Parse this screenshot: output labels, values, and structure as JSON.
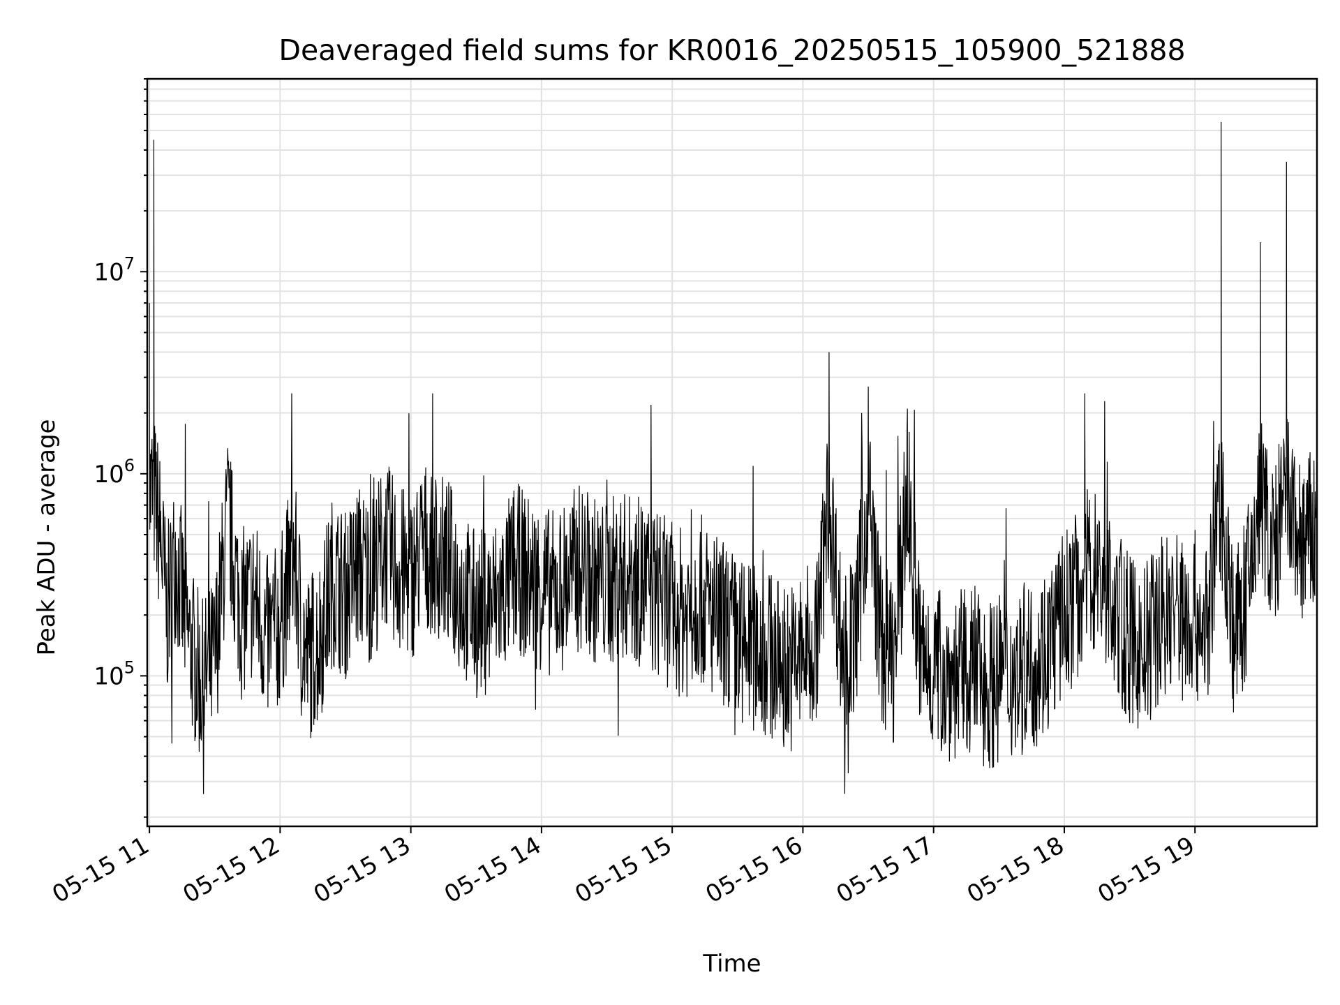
{
  "chart_data": {
    "type": "line",
    "title": "Deaveraged field sums for KR0016_20250515_105900_521888",
    "xlabel": "Time",
    "ylabel": "Peak ADU - average",
    "y_scale": "log",
    "ylim": [
      18000,
      90000000
    ],
    "xlim": [
      "2025-05-15 10:59",
      "2025-05-15 19:56"
    ],
    "grid": true,
    "legend": "none",
    "line_color": "#000000",
    "x_ticks": [
      {
        "value": "2025-05-15 11:00",
        "label": "05-15 11"
      },
      {
        "value": "2025-05-15 12:00",
        "label": "05-15 12"
      },
      {
        "value": "2025-05-15 13:00",
        "label": "05-15 13"
      },
      {
        "value": "2025-05-15 14:00",
        "label": "05-15 14"
      },
      {
        "value": "2025-05-15 15:00",
        "label": "05-15 15"
      },
      {
        "value": "2025-05-15 16:00",
        "label": "05-15 16"
      },
      {
        "value": "2025-05-15 17:00",
        "label": "05-15 17"
      },
      {
        "value": "2025-05-15 18:00",
        "label": "05-15 18"
      },
      {
        "value": "2025-05-15 19:00",
        "label": "05-15 19"
      }
    ],
    "y_ticks": [
      {
        "value": 100000,
        "base": "10",
        "exp": "5"
      },
      {
        "value": 1000000,
        "base": "10",
        "exp": "6"
      },
      {
        "value": 10000000,
        "base": "10",
        "exp": "7"
      }
    ],
    "x": [
      "2025-05-15 11:00",
      "2025-05-15 11:02",
      "2025-05-15 11:05",
      "2025-05-15 11:08",
      "2025-05-15 11:12",
      "2025-05-15 11:18",
      "2025-05-15 11:24",
      "2025-05-15 11:30",
      "2025-05-15 11:36",
      "2025-05-15 11:42",
      "2025-05-15 11:48",
      "2025-05-15 11:54",
      "2025-05-15 12:00",
      "2025-05-15 12:06",
      "2025-05-15 12:12",
      "2025-05-15 12:18",
      "2025-05-15 12:24",
      "2025-05-15 12:30",
      "2025-05-15 12:36",
      "2025-05-15 12:42",
      "2025-05-15 12:48",
      "2025-05-15 12:54",
      "2025-05-15 13:00",
      "2025-05-15 13:06",
      "2025-05-15 13:12",
      "2025-05-15 13:18",
      "2025-05-15 13:24",
      "2025-05-15 13:30",
      "2025-05-15 13:36",
      "2025-05-15 13:42",
      "2025-05-15 13:48",
      "2025-05-15 13:54",
      "2025-05-15 14:00",
      "2025-05-15 14:06",
      "2025-05-15 14:12",
      "2025-05-15 14:18",
      "2025-05-15 14:24",
      "2025-05-15 14:30",
      "2025-05-15 14:36",
      "2025-05-15 14:42",
      "2025-05-15 14:48",
      "2025-05-15 14:54",
      "2025-05-15 15:00",
      "2025-05-15 15:06",
      "2025-05-15 15:12",
      "2025-05-15 15:18",
      "2025-05-15 15:24",
      "2025-05-15 15:30",
      "2025-05-15 15:36",
      "2025-05-15 15:42",
      "2025-05-15 15:48",
      "2025-05-15 15:54",
      "2025-05-15 16:00",
      "2025-05-15 16:06",
      "2025-05-15 16:12",
      "2025-05-15 16:18",
      "2025-05-15 16:24",
      "2025-05-15 16:30",
      "2025-05-15 16:36",
      "2025-05-15 16:42",
      "2025-05-15 16:48",
      "2025-05-15 16:54",
      "2025-05-15 17:00",
      "2025-05-15 17:06",
      "2025-05-15 17:12",
      "2025-05-15 17:18",
      "2025-05-15 17:24",
      "2025-05-15 17:30",
      "2025-05-15 17:36",
      "2025-05-15 17:42",
      "2025-05-15 17:48",
      "2025-05-15 17:54",
      "2025-05-15 18:00",
      "2025-05-15 18:06",
      "2025-05-15 18:12",
      "2025-05-15 18:18",
      "2025-05-15 18:24",
      "2025-05-15 18:30",
      "2025-05-15 18:36",
      "2025-05-15 18:42",
      "2025-05-15 18:48",
      "2025-05-15 18:54",
      "2025-05-15 19:00",
      "2025-05-15 19:06",
      "2025-05-15 19:12",
      "2025-05-15 19:18",
      "2025-05-15 19:24",
      "2025-05-15 19:30",
      "2025-05-15 19:36",
      "2025-05-15 19:42",
      "2025-05-15 19:48",
      "2025-05-15 19:54"
    ],
    "values": [
      7000000,
      45000000,
      500000,
      200000,
      400000,
      150000,
      90000,
      120000,
      600000,
      200000,
      250000,
      150000,
      180000,
      400000,
      120000,
      150000,
      300000,
      250000,
      350000,
      300000,
      450000,
      350000,
      300000,
      450000,
      400000,
      350000,
      250000,
      200000,
      220000,
      250000,
      350000,
      300000,
      280000,
      250000,
      300000,
      350000,
      300000,
      280000,
      320000,
      300000,
      280000,
      250000,
      220000,
      200000,
      250000,
      200000,
      180000,
      150000,
      140000,
      130000,
      120000,
      110000,
      130000,
      140000,
      4000000,
      130000,
      150000,
      2700000,
      140000,
      120000,
      2100000,
      120000,
      110000,
      100000,
      100000,
      110000,
      90000,
      95000,
      100000,
      110000,
      120000,
      150000,
      200000,
      250000,
      350000,
      300000,
      200000,
      150000,
      130000,
      180000,
      220000,
      200000,
      200000,
      180000,
      55000000,
      150000,
      250000,
      14000000,
      400000,
      35000000,
      450000,
      500000
    ]
  }
}
